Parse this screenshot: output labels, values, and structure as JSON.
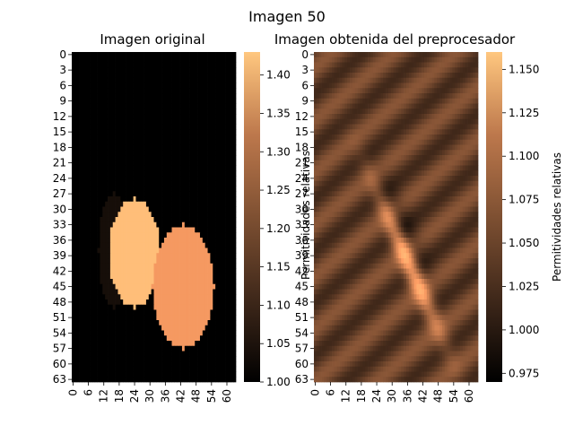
{
  "figure_title": "Imagen 50",
  "colormap": "copper",
  "chart_data": [
    {
      "type": "heatmap",
      "title": "Imagen original",
      "xlabel": "",
      "ylabel": "",
      "x_ticks": [
        "0",
        "6",
        "12",
        "18",
        "24",
        "30",
        "36",
        "42",
        "48",
        "54",
        "60"
      ],
      "y_ticks": [
        "0",
        "3",
        "6",
        "9",
        "12",
        "15",
        "18",
        "21",
        "24",
        "27",
        "30",
        "33",
        "36",
        "39",
        "42",
        "45",
        "48",
        "51",
        "54",
        "57",
        "60",
        "63"
      ],
      "grid_size": [
        64,
        64
      ],
      "colorbar": {
        "label": "",
        "range": [
          1.0,
          1.43
        ],
        "ticks": [
          "1.00",
          "1.05",
          "1.10",
          "1.15",
          "1.20",
          "1.25",
          "1.30",
          "1.35",
          "1.40"
        ],
        "tick_values": [
          1.0,
          1.05,
          1.1,
          1.15,
          1.2,
          1.25,
          1.3,
          1.35,
          1.4
        ]
      },
      "background_value": 1.0,
      "shapes": [
        {
          "shape": "ellipse",
          "center_col": 16,
          "center_row": 38,
          "radius_cols": 6,
          "radius_rows": 11,
          "value": 1.03
        },
        {
          "shape": "ellipse",
          "center_col": 24,
          "center_row": 38.5,
          "radius_cols": 10,
          "radius_rows": 10.5,
          "value": 1.41
        },
        {
          "shape": "ellipse",
          "center_col": 43,
          "center_row": 45,
          "radius_cols": 12,
          "radius_rows": 12,
          "value": 1.33
        }
      ]
    },
    {
      "type": "heatmap",
      "title": "Imagen obtenida del preprocesador",
      "xlabel": "",
      "ylabel": "",
      "x_ticks": [
        "0",
        "6",
        "12",
        "18",
        "24",
        "30",
        "36",
        "42",
        "48",
        "54",
        "60"
      ],
      "y_ticks": [
        "0",
        "3",
        "6",
        "9",
        "12",
        "15",
        "18",
        "21",
        "24",
        "27",
        "30",
        "33",
        "36",
        "39",
        "42",
        "45",
        "48",
        "51",
        "54",
        "57",
        "60",
        "63"
      ],
      "grid_size": [
        64,
        64
      ],
      "colorbar": {
        "label": "Permitividades relativas",
        "range": [
          0.97,
          1.16
        ],
        "ticks": [
          "0.975",
          "1.000",
          "1.025",
          "1.050",
          "1.075",
          "1.100",
          "1.125",
          "1.150"
        ],
        "tick_values": [
          0.975,
          1.0,
          1.025,
          1.05,
          1.075,
          1.1,
          1.125,
          1.15
        ]
      },
      "overlapping_text": "Permitividades relativas"
    }
  ]
}
